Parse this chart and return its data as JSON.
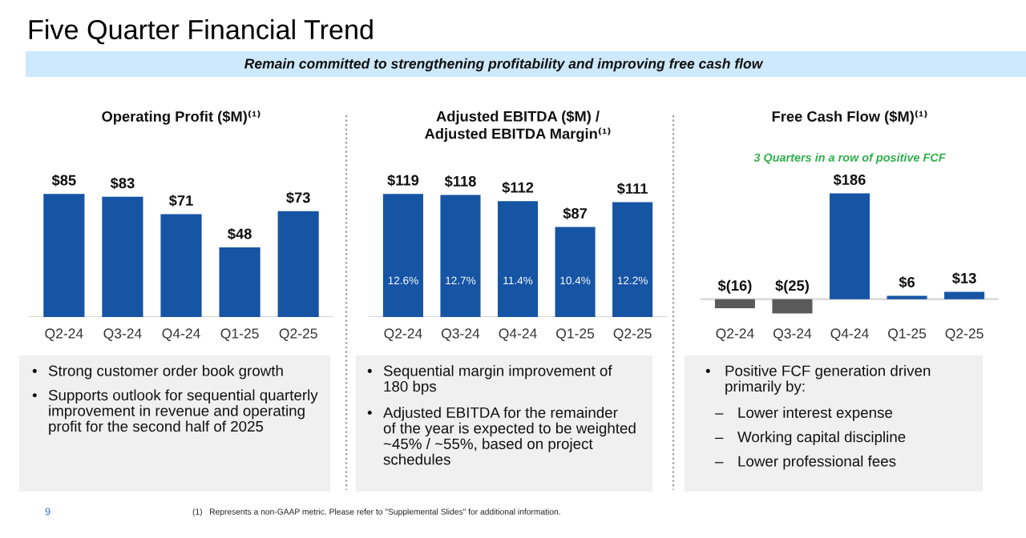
{
  "chart_data": [
    {
      "type": "other",
      "title": "Five Quarter Financial Trend",
      "subtitle": "Remain committed to strengthening profitability and improving free cash flow",
      "annotations": [
        "9",
        "(1)   Represents a non-GAAP metric. Please refer to \"Supplemental Slides\" for additional information."
      ]
    },
    {
      "type": "bar",
      "title": "Operating Profit ($M)⁽¹⁾",
      "categories": [
        "Q2-24",
        "Q3-24",
        "Q4-24",
        "Q1-25",
        "Q2-25"
      ],
      "values": [
        85,
        83,
        71,
        48,
        73
      ],
      "value_labels": [
        "$85",
        "$83",
        "$71",
        "$48",
        "$73"
      ],
      "color": "#1654a4",
      "annotations": [
        "• Strong customer order book growth",
        "• Supports outlook for sequential quarterly\nimprovement in revenue and operating\nprofit for the second half of 2025"
      ]
    },
    {
      "type": "bar",
      "title": "Adjusted EBITDA ($M) /\nAdjusted EBITDA Margin⁽¹⁾",
      "categories": [
        "Q2-24",
        "Q3-24",
        "Q4-24",
        "Q1-25",
        "Q2-25"
      ],
      "values": [
        119,
        118,
        112,
        87,
        111
      ],
      "value_labels": [
        "$119",
        "$118",
        "$112",
        "$87",
        "$111"
      ],
      "color": "#1654a4",
      "annotations": [
        "12.6%",
        "12.7%",
        "11.4%",
        "10.4%",
        "12.2%",
        "• Sequential margin improvement of\n180 bps",
        "• Adjusted EBITDA for the remainder\nof the year is expected to be weighted\n~45% / ~55%, based on project\nschedules"
      ]
    },
    {
      "type": "bar",
      "title": "Free Cash Flow ($M)⁽¹⁾",
      "subtitle": "3 Quarters in a row of positive FCF",
      "categories": [
        "Q2-24",
        "Q3-24",
        "Q4-24",
        "Q1-25",
        "Q2-25"
      ],
      "values": [
        -16,
        -25,
        186,
        6,
        13
      ],
      "value_labels": [
        "$(16)",
        "$(25)",
        "$186",
        "$6",
        "$13"
      ],
      "colors": [
        "#5a5a5a",
        "#5a5a5a",
        "#1654a4",
        "#1654a4",
        "#1654a4"
      ],
      "annotations": [
        "• Positive FCF generation driven\nprimarily by:",
        "– Lower interest expense",
        "– Working capital discipline",
        "– Lower professional fees"
      ]
    }
  ]
}
